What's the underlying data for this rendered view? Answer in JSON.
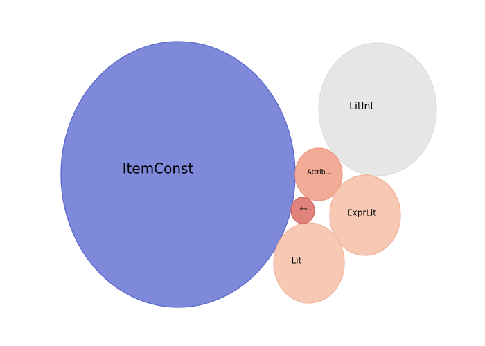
{
  "chart_data": {
    "type": "bubble",
    "title": "",
    "grid": false,
    "legend": "none",
    "bubbles": [
      {
        "label": "ItemConst",
        "value": 100,
        "color": "#7f89d9",
        "stroke": "#5b68cc"
      },
      {
        "label": "LitInt",
        "value": 25,
        "color": "#e6e6e6",
        "stroke": "#dddddd"
      },
      {
        "label": "Attrib...",
        "value": 6,
        "color": "#f1ab97",
        "stroke": "#e99b84"
      },
      {
        "label": "ExprLit",
        "value": 11,
        "color": "#f7c8b3",
        "stroke": "#f3b39b"
      },
      {
        "label": "Lit",
        "value": 11,
        "color": "#f7c8b3",
        "stroke": "#f3b39b"
      },
      {
        "label": "Iden...",
        "value": 1.4,
        "color": "#e1827c",
        "stroke": "#cf6a63"
      }
    ]
  }
}
